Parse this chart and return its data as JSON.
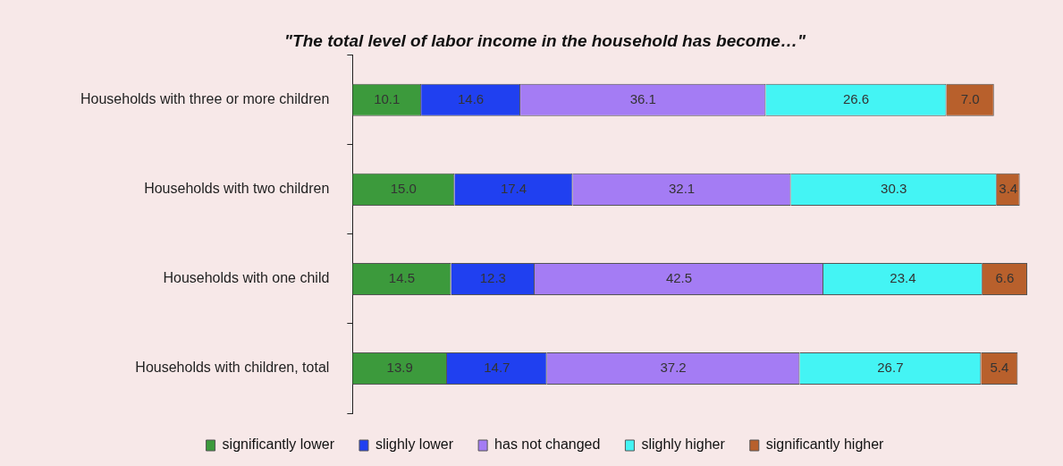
{
  "chart_data": {
    "type": "bar",
    "orientation": "horizontal",
    "stacked": true,
    "title": "\"The total level of labor income in the household has become…\"",
    "categories": [
      "Households with three or more children",
      "Households with two children",
      "Households with one child",
      "Households with children, total"
    ],
    "series": [
      {
        "name": "significantly lower",
        "color": "#3c9a3c",
        "values": [
          10.1,
          15.0,
          14.5,
          13.9
        ],
        "value_labels": [
          "10.1",
          "15.0",
          "14.5",
          "13.9"
        ]
      },
      {
        "name": "slighly lower",
        "color": "#2040f0",
        "values": [
          14.6,
          17.4,
          12.3,
          14.7
        ],
        "value_labels": [
          "14.6",
          "17.4",
          "12.3",
          "14.7"
        ]
      },
      {
        "name": "has not changed",
        "color": "#a47cf4",
        "values": [
          36.1,
          32.1,
          42.5,
          37.2
        ],
        "value_labels": [
          "36.1",
          "32.1",
          "42.5",
          "37.2"
        ]
      },
      {
        "name": "slighly higher",
        "color": "#44f4f4",
        "values": [
          26.6,
          30.3,
          23.4,
          26.7
        ],
        "value_labels": [
          "26.6",
          "30.3",
          "23.4",
          "26.7"
        ]
      },
      {
        "name": "significantly higher",
        "color": "#b8602c",
        "values": [
          7.0,
          3.4,
          6.6,
          5.4
        ],
        "value_labels": [
          "7.0",
          "3.4",
          "6.6",
          "5.4"
        ]
      }
    ],
    "grid": false,
    "legend": "bottom",
    "tick_labels": "y"
  }
}
